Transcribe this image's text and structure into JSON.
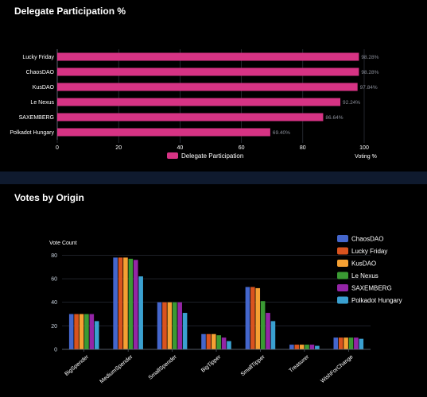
{
  "sections": {
    "participation_title": "Delegate Participation %",
    "votes_title": "Votes by Origin"
  },
  "colors": {
    "background": "#000000",
    "page": "#0b1220",
    "divider": "#0f1a2e",
    "participation_bar": "#d63384"
  },
  "chart_data": [
    {
      "type": "bar",
      "orientation": "horizontal",
      "categories": [
        "Lucky Friday",
        "ChaosDAO",
        "KusDAO",
        "Le Nexus",
        "SAXEMBERG",
        "Polkadot Hungary"
      ],
      "series": [
        {
          "name": "Delegate Participation",
          "color": "#d63384",
          "values": [
            98.28,
            98.28,
            97.84,
            92.24,
            86.64,
            69.4
          ],
          "labels": [
            "98.28%",
            "98.28%",
            "97.84%",
            "92.24%",
            "86.64%",
            "69.40%"
          ]
        }
      ],
      "xlabel": "Voting %",
      "xlim": [
        0,
        100
      ],
      "xticks": [
        0,
        20,
        40,
        60,
        80,
        100
      ],
      "legend": "bottom",
      "grid": true
    },
    {
      "type": "bar",
      "orientation": "vertical",
      "categories": [
        "BigSpender",
        "MediumSpender",
        "SmallSpender",
        "BigTipper",
        "SmallTipper",
        "Treasurer",
        "WishForChange"
      ],
      "series": [
        {
          "name": "ChaosDAO",
          "color": "#4466cc",
          "values": [
            30,
            78,
            40,
            13,
            53,
            4,
            10
          ]
        },
        {
          "name": "Lucky Friday",
          "color": "#d9531e",
          "values": [
            30,
            78,
            40,
            13,
            53,
            4,
            10
          ]
        },
        {
          "name": "KusDAO",
          "color": "#f5a033",
          "values": [
            30,
            78,
            40,
            13,
            52,
            4,
            10
          ]
        },
        {
          "name": "Le Nexus",
          "color": "#3a9a33",
          "values": [
            30,
            77,
            40,
            12,
            41,
            4,
            10
          ]
        },
        {
          "name": "SAXEMBERG",
          "color": "#9425a6",
          "values": [
            30,
            76,
            40,
            10,
            31,
            4,
            10
          ]
        },
        {
          "name": "Polkadot Hungary",
          "color": "#3aa0d0",
          "values": [
            24,
            62,
            31,
            7,
            24,
            3,
            9
          ]
        }
      ],
      "ylabel": "Vote Count",
      "ylim": [
        0,
        85
      ],
      "yticks": [
        0,
        20,
        40,
        60,
        80
      ],
      "legend": "right",
      "grid": true
    }
  ]
}
